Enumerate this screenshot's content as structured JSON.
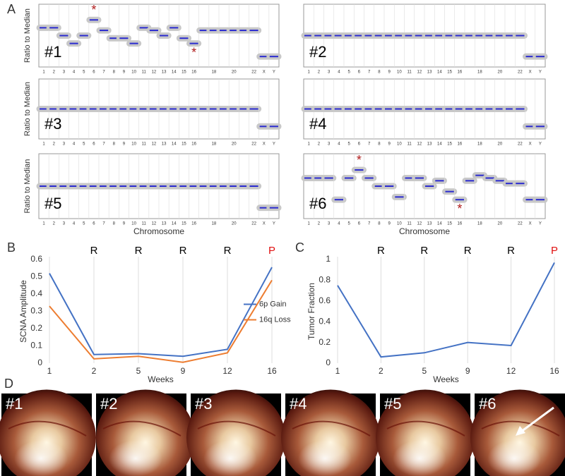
{
  "panel_labels": [
    "A",
    "B",
    "C",
    "D"
  ],
  "chart_data": [
    {
      "type": "step",
      "title": "#1",
      "y_label": "Ratio to Median",
      "categories": [
        "1",
        "2",
        "3",
        "4",
        "5",
        "6",
        "7",
        "8",
        "9",
        "10",
        "11",
        "12",
        "13",
        "14",
        "15",
        "16",
        null,
        "18",
        null,
        "20",
        null,
        "22",
        "X",
        "Y"
      ],
      "values": [
        1.15,
        1.15,
        1.0,
        0.85,
        1.0,
        1.3,
        1.1,
        0.95,
        0.95,
        0.85,
        1.15,
        1.1,
        1.0,
        1.15,
        0.95,
        0.85,
        1.1,
        1.1,
        1.1,
        1.1,
        1.1,
        1.1,
        0.6,
        0.6
      ],
      "markers": [
        null,
        null,
        null,
        null,
        null,
        "*",
        null,
        null,
        null,
        null,
        null,
        null,
        null,
        null,
        null,
        "*",
        null,
        null,
        null,
        null,
        null,
        null,
        null,
        null
      ],
      "marker_color": "#b01c1c",
      "color": "#2b2bd0",
      "ylim": [
        0.4,
        1.6
      ]
    },
    {
      "type": "step",
      "title": "#2",
      "categories": [
        "1",
        "2",
        "3",
        "4",
        "5",
        "6",
        "7",
        "8",
        "9",
        "10",
        "11",
        "12",
        "13",
        "14",
        "15",
        "16",
        null,
        "18",
        null,
        "20",
        null,
        "22",
        "X",
        "Y"
      ],
      "values": [
        1.0,
        1.0,
        1.0,
        1.0,
        1.0,
        1.0,
        1.0,
        1.0,
        1.0,
        1.0,
        1.0,
        1.0,
        1.0,
        1.0,
        1.0,
        1.0,
        1.0,
        1.0,
        1.0,
        1.0,
        1.0,
        1.0,
        0.6,
        0.6
      ],
      "color": "#2b2bd0",
      "ylim": [
        0.4,
        1.6
      ]
    },
    {
      "type": "step",
      "title": "#3",
      "y_label": "Ratio to Median",
      "categories": [
        "1",
        "2",
        "3",
        "4",
        "5",
        "6",
        "7",
        "8",
        "9",
        "10",
        "11",
        "12",
        "13",
        "14",
        "15",
        "16",
        null,
        "18",
        null,
        "20",
        null,
        "22",
        "X",
        "Y"
      ],
      "values": [
        1.0,
        1.0,
        1.0,
        1.0,
        1.0,
        1.0,
        1.0,
        1.0,
        1.0,
        1.0,
        1.0,
        1.0,
        1.0,
        1.0,
        1.0,
        1.0,
        1.0,
        1.0,
        1.0,
        1.0,
        1.0,
        1.0,
        0.65,
        0.65
      ],
      "color": "#2b2bd0",
      "ylim": [
        0.4,
        1.6
      ]
    },
    {
      "type": "step",
      "title": "#4",
      "categories": [
        "1",
        "2",
        "3",
        "4",
        "5",
        "6",
        "7",
        "8",
        "9",
        "10",
        "11",
        "12",
        "13",
        "14",
        "15",
        "16",
        null,
        "18",
        null,
        "20",
        null,
        "22",
        "X",
        "Y"
      ],
      "values": [
        1.0,
        1.0,
        1.0,
        1.0,
        1.0,
        1.0,
        1.0,
        1.0,
        1.0,
        1.0,
        1.0,
        1.0,
        1.0,
        1.0,
        1.0,
        1.0,
        1.0,
        1.0,
        1.0,
        1.0,
        1.0,
        1.0,
        0.65,
        0.65
      ],
      "color": "#2b2bd0",
      "ylim": [
        0.4,
        1.6
      ]
    },
    {
      "type": "step",
      "title": "#5",
      "y_label": "Ratio to Median",
      "x_label": "Chromosome",
      "categories": [
        "1",
        "2",
        "3",
        "4",
        "5",
        "6",
        "7",
        "8",
        "9",
        "10",
        "11",
        "12",
        "13",
        "14",
        "15",
        "16",
        null,
        "18",
        null,
        "20",
        null,
        "22",
        "X",
        "Y"
      ],
      "values": [
        1.0,
        1.0,
        1.0,
        1.0,
        1.0,
        1.0,
        1.0,
        1.0,
        1.0,
        1.0,
        1.0,
        1.0,
        1.0,
        1.0,
        1.0,
        1.0,
        1.0,
        1.0,
        1.0,
        1.0,
        1.0,
        1.0,
        0.6,
        0.6
      ],
      "color": "#2b2bd0",
      "ylim": [
        0.4,
        1.6
      ]
    },
    {
      "type": "step",
      "title": "#6",
      "x_label": "Chromosome",
      "categories": [
        "1",
        "2",
        "3",
        "4",
        "5",
        "6",
        "7",
        "8",
        "9",
        "10",
        "11",
        "12",
        "13",
        "14",
        "15",
        "16",
        null,
        "18",
        null,
        "20",
        null,
        "22",
        "X",
        "Y"
      ],
      "values": [
        1.15,
        1.15,
        1.15,
        0.75,
        1.15,
        1.3,
        1.15,
        1.0,
        1.0,
        0.8,
        1.15,
        1.15,
        1.0,
        1.1,
        0.9,
        0.75,
        1.1,
        1.2,
        1.15,
        1.1,
        1.05,
        1.05,
        0.75,
        0.75
      ],
      "markers": [
        null,
        null,
        null,
        null,
        null,
        "*",
        null,
        null,
        null,
        null,
        null,
        null,
        null,
        null,
        null,
        "*",
        null,
        null,
        null,
        null,
        null,
        null,
        null,
        null
      ],
      "marker_color": "#b01c1c",
      "color": "#2b2bd0",
      "ylim": [
        0.4,
        1.6
      ]
    },
    {
      "type": "line",
      "x_label": "Weeks",
      "y_label": "SCNA Amplitude",
      "categories": [
        "1",
        "2",
        "5",
        "9",
        "12",
        "16"
      ],
      "top_labels": [
        null,
        "R",
        "R",
        "R",
        "R",
        "P"
      ],
      "top_label_colors": [
        null,
        "#000000",
        "#000000",
        "#000000",
        "#000000",
        "#e01010"
      ],
      "series": [
        {
          "name": "6p Gain",
          "color": "#4472c4",
          "values": [
            0.52,
            0.05,
            0.055,
            0.04,
            0.08,
            0.555
          ]
        },
        {
          "name": "16q Loss",
          "color": "#ed7d31",
          "values": [
            0.33,
            0.025,
            0.04,
            0.005,
            0.06,
            0.48
          ]
        }
      ],
      "ylim": [
        0,
        0.6
      ],
      "yticks": [
        0,
        0.1,
        0.2,
        0.3,
        0.4,
        0.5,
        0.6
      ],
      "legend": "right"
    },
    {
      "type": "line",
      "x_label": "Weeks",
      "y_label": "Tumor Fraction",
      "categories": [
        "1",
        "2",
        "5",
        "9",
        "12",
        "16"
      ],
      "top_labels": [
        null,
        "R",
        "R",
        "R",
        "R",
        "P"
      ],
      "top_label_colors": [
        null,
        "#000000",
        "#000000",
        "#000000",
        "#000000",
        "#e01010"
      ],
      "series": [
        {
          "color": "#4472c4",
          "values": [
            0.75,
            0.06,
            0.1,
            0.2,
            0.17,
            0.97
          ]
        }
      ],
      "ylim": [
        0,
        1
      ],
      "yticks": [
        0,
        0.2,
        0.4,
        0.6,
        0.8,
        1
      ]
    }
  ],
  "images": {
    "labels": [
      "#1",
      "#2",
      "#3",
      "#4",
      "#5",
      "#6"
    ]
  }
}
